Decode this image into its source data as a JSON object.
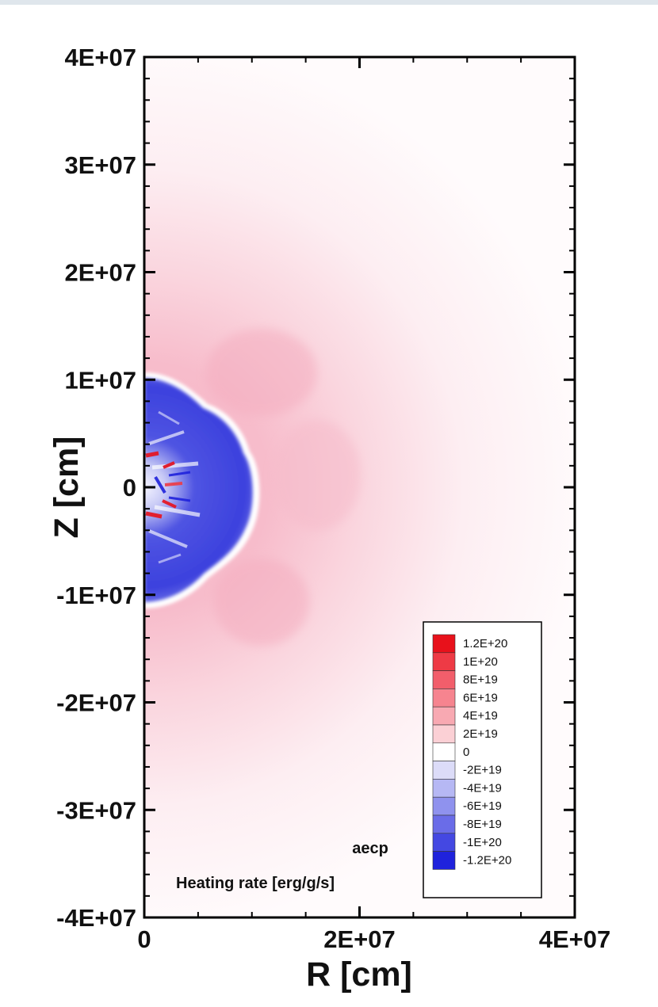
{
  "chart_data": {
    "type": "heatmap",
    "title": "",
    "xlabel": "R [cm]",
    "ylabel": "Z [cm]",
    "xlim": [
      0,
      40000000
    ],
    "ylim": [
      -40000000,
      40000000
    ],
    "x_ticks": [
      {
        "value": 0,
        "label": "0"
      },
      {
        "value": 20000000,
        "label": "2E+07"
      },
      {
        "value": 40000000,
        "label": "4E+07"
      }
    ],
    "y_ticks": [
      {
        "value": 40000000,
        "label": "4E+07"
      },
      {
        "value": 30000000,
        "label": "3E+07"
      },
      {
        "value": 20000000,
        "label": "2E+07"
      },
      {
        "value": 10000000,
        "label": "1E+07"
      },
      {
        "value": 0,
        "label": "0"
      },
      {
        "value": -10000000,
        "label": "-1E+07"
      },
      {
        "value": -20000000,
        "label": "-2E+07"
      },
      {
        "value": -30000000,
        "label": "-3E+07"
      },
      {
        "value": -40000000,
        "label": "-4E+07"
      }
    ],
    "variable_name": "aecp",
    "colorbar_title": "Heating rate [erg/g/s]",
    "colorbar": {
      "levels": [
        {
          "label": "1.2E+20",
          "value": 1.2e+20,
          "color": "#e8111b"
        },
        {
          "label": "1E+20",
          "value": 1e+20,
          "color": "#ee3a45"
        },
        {
          "label": "8E+19",
          "value": 8e+19,
          "color": "#f25e6b"
        },
        {
          "label": "6E+19",
          "value": 6e+19,
          "color": "#f6848f"
        },
        {
          "label": "4E+19",
          "value": 4e+19,
          "color": "#f8a9b2"
        },
        {
          "label": "2E+19",
          "value": 2e+19,
          "color": "#fbd0d5"
        },
        {
          "label": "0",
          "value": 0,
          "color": "#ffffff"
        },
        {
          "label": "-2E+19",
          "value": -2e+19,
          "color": "#dcdcf8"
        },
        {
          "label": "-4E+19",
          "value": -4e+19,
          "color": "#b6b8f4"
        },
        {
          "label": "-6E+19",
          "value": -6e+19,
          "color": "#8f92ee"
        },
        {
          "label": "-8E+19",
          "value": -8e+19,
          "color": "#6a6ce8"
        },
        {
          "label": "-1E+20",
          "value": -1e+20,
          "color": "#4448e2"
        },
        {
          "label": "-1.2E+20",
          "value": -1.2e+20,
          "color": "#1f22dc"
        }
      ]
    },
    "fields": {
      "central_cooling_region": {
        "r_max": 10500000,
        "z_range": [
          -10000000,
          10000000
        ],
        "value": -1.2e+20
      },
      "heating_shell_peak": {
        "r": 12000000,
        "z": 0,
        "value": 2.5e+19
      }
    },
    "grid": false,
    "legend_position": "bottom-right"
  }
}
